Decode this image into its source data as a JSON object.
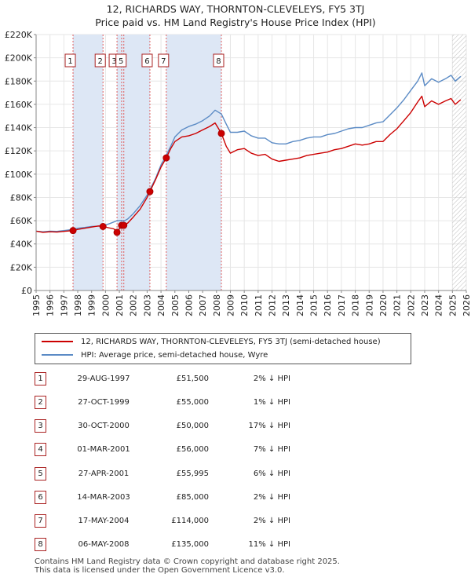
{
  "title_line1": "12, RICHARDS WAY, THORNTON-CLEVELEYS, FY5 3TJ",
  "title_line2": "Price paid vs. HM Land Registry's House Price Index (HPI)",
  "legend": {
    "property_label": "12, RICHARDS WAY, THORNTON-CLEVELEYS, FY5 3TJ (semi-detached house)",
    "hpi_label": "HPI: Average price, semi-detached house, Wyre"
  },
  "colors": {
    "property": "#cc0000",
    "hpi": "#5b8bc5",
    "shade": "#dde7f5",
    "marker_line": "#e06060",
    "grid": "#e6e6e6"
  },
  "sales": [
    {
      "num": "1",
      "date": "29-AUG-1997",
      "price": "£51,500",
      "hpi": "2% ↓ HPI",
      "year": 1997.66,
      "value": 51500
    },
    {
      "num": "2",
      "date": "27-OCT-1999",
      "price": "£55,000",
      "hpi": "1% ↓ HPI",
      "year": 1999.82,
      "value": 55000
    },
    {
      "num": "3",
      "date": "30-OCT-2000",
      "price": "£50,000",
      "hpi": "17% ↓ HPI",
      "year": 2000.83,
      "value": 50000
    },
    {
      "num": "4",
      "date": "01-MAR-2001",
      "price": "£56,000",
      "hpi": "7% ↓ HPI",
      "year": 2001.16,
      "value": 56000
    },
    {
      "num": "5",
      "date": "27-APR-2001",
      "price": "£55,995",
      "hpi": "6% ↓ HPI",
      "year": 2001.32,
      "value": 55995
    },
    {
      "num": "6",
      "date": "14-MAR-2003",
      "price": "£85,000",
      "hpi": "2% ↓ HPI",
      "year": 2003.2,
      "value": 85000
    },
    {
      "num": "7",
      "date": "17-MAY-2004",
      "price": "£114,000",
      "hpi": "2% ↓ HPI",
      "year": 2004.38,
      "value": 114000
    },
    {
      "num": "8",
      "date": "06-MAY-2008",
      "price": "£135,000",
      "hpi": "11% ↓ HPI",
      "year": 2008.35,
      "value": 135000
    }
  ],
  "chart_data": {
    "type": "line",
    "title": "12, RICHARDS WAY, THORNTON-CLEVELEYS, FY5 3TJ — Price paid vs. HM Land Registry's House Price Index (HPI)",
    "xlim": [
      1995,
      2026
    ],
    "ylim": [
      0,
      220000
    ],
    "x_ticks": [
      "1995",
      "1996",
      "1997",
      "1998",
      "1999",
      "2000",
      "2001",
      "2002",
      "2003",
      "2004",
      "2005",
      "2006",
      "2007",
      "2008",
      "2009",
      "2010",
      "2011",
      "2012",
      "2013",
      "2014",
      "2015",
      "2016",
      "2017",
      "2018",
      "2019",
      "2020",
      "2021",
      "2022",
      "2023",
      "2024",
      "2025",
      "2026"
    ],
    "y_ticks": [
      {
        "value": 0,
        "label": "£0"
      },
      {
        "value": 20000,
        "label": "£20K"
      },
      {
        "value": 40000,
        "label": "£40K"
      },
      {
        "value": 60000,
        "label": "£60K"
      },
      {
        "value": 80000,
        "label": "£80K"
      },
      {
        "value": 100000,
        "label": "£100K"
      },
      {
        "value": 120000,
        "label": "£120K"
      },
      {
        "value": 140000,
        "label": "£140K"
      },
      {
        "value": 160000,
        "label": "£160K"
      },
      {
        "value": 180000,
        "label": "£180K"
      },
      {
        "value": 200000,
        "label": "£200K"
      },
      {
        "value": 220000,
        "label": "£220K"
      }
    ],
    "shaded_ranges": [
      [
        1997.66,
        1999.82
      ],
      [
        2000.83,
        2003.2
      ],
      [
        2004.38,
        2008.35
      ]
    ],
    "future_hatch_from": 2025.0,
    "series": [
      {
        "name": "12, RICHARDS WAY, THORNTON-CLEVELEYS, FY5 3TJ (semi-detached house)",
        "color": "#cc0000",
        "points": [
          [
            1995.0,
            51000
          ],
          [
            1995.5,
            50000
          ],
          [
            1996.0,
            50500
          ],
          [
            1996.5,
            50200
          ],
          [
            1997.0,
            50800
          ],
          [
            1997.66,
            51500
          ],
          [
            1998.0,
            52500
          ],
          [
            1998.5,
            53500
          ],
          [
            1999.0,
            54500
          ],
          [
            1999.5,
            55500
          ],
          [
            1999.82,
            55000
          ],
          [
            2000.2,
            54000
          ],
          [
            2000.6,
            53000
          ],
          [
            2000.83,
            50000
          ],
          [
            2001.0,
            53000
          ],
          [
            2001.16,
            56000
          ],
          [
            2001.32,
            55995
          ],
          [
            2001.6,
            58000
          ],
          [
            2002.0,
            63000
          ],
          [
            2002.5,
            70000
          ],
          [
            2003.0,
            80000
          ],
          [
            2003.2,
            85000
          ],
          [
            2003.6,
            95000
          ],
          [
            2004.0,
            106000
          ],
          [
            2004.38,
            114000
          ],
          [
            2004.7,
            122000
          ],
          [
            2005.0,
            128000
          ],
          [
            2005.5,
            132000
          ],
          [
            2006.0,
            133000
          ],
          [
            2006.5,
            135000
          ],
          [
            2007.0,
            138000
          ],
          [
            2007.5,
            141000
          ],
          [
            2007.9,
            144000
          ],
          [
            2008.1,
            140000
          ],
          [
            2008.35,
            135000
          ],
          [
            2008.7,
            124000
          ],
          [
            2009.0,
            118000
          ],
          [
            2009.5,
            121000
          ],
          [
            2010.0,
            122000
          ],
          [
            2010.5,
            118000
          ],
          [
            2011.0,
            116000
          ],
          [
            2011.5,
            117000
          ],
          [
            2012.0,
            113000
          ],
          [
            2012.5,
            111000
          ],
          [
            2013.0,
            112000
          ],
          [
            2013.5,
            113000
          ],
          [
            2014.0,
            114000
          ],
          [
            2014.5,
            116000
          ],
          [
            2015.0,
            117000
          ],
          [
            2015.5,
            118000
          ],
          [
            2016.0,
            119000
          ],
          [
            2016.5,
            121000
          ],
          [
            2017.0,
            122000
          ],
          [
            2017.5,
            124000
          ],
          [
            2018.0,
            126000
          ],
          [
            2018.5,
            125000
          ],
          [
            2019.0,
            126000
          ],
          [
            2019.5,
            128000
          ],
          [
            2020.0,
            128000
          ],
          [
            2020.5,
            134000
          ],
          [
            2021.0,
            139000
          ],
          [
            2021.5,
            146000
          ],
          [
            2022.0,
            153000
          ],
          [
            2022.5,
            162000
          ],
          [
            2022.8,
            167000
          ],
          [
            2023.0,
            158000
          ],
          [
            2023.5,
            163000
          ],
          [
            2024.0,
            160000
          ],
          [
            2024.5,
            163000
          ],
          [
            2024.9,
            165000
          ],
          [
            2025.2,
            160000
          ],
          [
            2025.6,
            164000
          ]
        ]
      },
      {
        "name": "HPI: Average price, semi-detached house, Wyre",
        "color": "#5b8bc5",
        "points": [
          [
            1995.0,
            51000
          ],
          [
            1995.5,
            50500
          ],
          [
            1996.0,
            51000
          ],
          [
            1996.5,
            50800
          ],
          [
            1997.0,
            51500
          ],
          [
            1997.66,
            52500
          ],
          [
            1998.0,
            53500
          ],
          [
            1998.5,
            54200
          ],
          [
            1999.0,
            55000
          ],
          [
            1999.82,
            55600
          ],
          [
            2000.3,
            57500
          ],
          [
            2000.83,
            60000
          ],
          [
            2001.16,
            60200
          ],
          [
            2001.32,
            59600
          ],
          [
            2001.6,
            61500
          ],
          [
            2002.0,
            66000
          ],
          [
            2002.5,
            73000
          ],
          [
            2003.0,
            82000
          ],
          [
            2003.2,
            86700
          ],
          [
            2003.6,
            96000
          ],
          [
            2004.0,
            108000
          ],
          [
            2004.38,
            116300
          ],
          [
            2004.7,
            124000
          ],
          [
            2005.0,
            132000
          ],
          [
            2005.5,
            138000
          ],
          [
            2006.0,
            141000
          ],
          [
            2006.5,
            143000
          ],
          [
            2007.0,
            146000
          ],
          [
            2007.5,
            150000
          ],
          [
            2007.9,
            155000
          ],
          [
            2008.35,
            151700
          ],
          [
            2008.7,
            143000
          ],
          [
            2009.0,
            136000
          ],
          [
            2009.5,
            136000
          ],
          [
            2010.0,
            137000
          ],
          [
            2010.5,
            133000
          ],
          [
            2011.0,
            131000
          ],
          [
            2011.5,
            131000
          ],
          [
            2012.0,
            127000
          ],
          [
            2012.5,
            126000
          ],
          [
            2013.0,
            126000
          ],
          [
            2013.5,
            128000
          ],
          [
            2014.0,
            129000
          ],
          [
            2014.5,
            131000
          ],
          [
            2015.0,
            132000
          ],
          [
            2015.5,
            132000
          ],
          [
            2016.0,
            134000
          ],
          [
            2016.5,
            135000
          ],
          [
            2017.0,
            137000
          ],
          [
            2017.5,
            139000
          ],
          [
            2018.0,
            140000
          ],
          [
            2018.5,
            140000
          ],
          [
            2019.0,
            142000
          ],
          [
            2019.5,
            144000
          ],
          [
            2020.0,
            145000
          ],
          [
            2020.5,
            151000
          ],
          [
            2021.0,
            157000
          ],
          [
            2021.5,
            164000
          ],
          [
            2022.0,
            172000
          ],
          [
            2022.5,
            180000
          ],
          [
            2022.8,
            187000
          ],
          [
            2023.0,
            176000
          ],
          [
            2023.5,
            182000
          ],
          [
            2024.0,
            179000
          ],
          [
            2024.5,
            182000
          ],
          [
            2024.9,
            185000
          ],
          [
            2025.2,
            180000
          ],
          [
            2025.6,
            184000
          ]
        ]
      }
    ],
    "markers": [
      {
        "label": "1",
        "x": 1997.66,
        "y": 51500
      },
      {
        "label": "2",
        "x": 1999.82,
        "y": 55000
      },
      {
        "label": "3",
        "x": 2000.83,
        "y": 50000
      },
      {
        "label": "4",
        "x": 2001.16,
        "y": 56000
      },
      {
        "label": "5",
        "x": 2001.32,
        "y": 55995
      },
      {
        "label": "6",
        "x": 2003.2,
        "y": 85000
      },
      {
        "label": "7",
        "x": 2004.38,
        "y": 114000
      },
      {
        "label": "8",
        "x": 2008.35,
        "y": 135000
      }
    ],
    "box_labels": [
      {
        "label": "1",
        "x": 1997.66
      },
      {
        "label": "2",
        "x": 1999.82
      },
      {
        "label": "3",
        "x": 2000.83
      },
      {
        "label": "5",
        "x": 2001.32
      },
      {
        "label": "6",
        "x": 2003.2
      },
      {
        "label": "7",
        "x": 2004.38
      },
      {
        "label": "8",
        "x": 2008.35
      }
    ]
  },
  "footer": {
    "line1": "Contains HM Land Registry data © Crown copyright and database right 2025.",
    "line2": "This data is licensed under the Open Government Licence v3.0."
  }
}
